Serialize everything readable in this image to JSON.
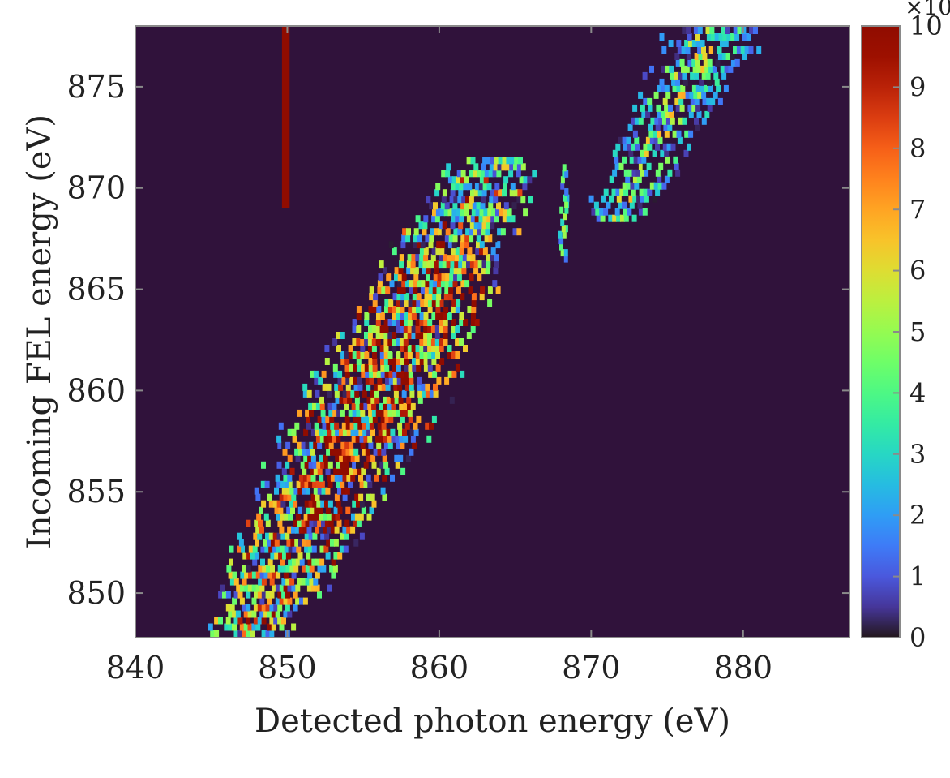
{
  "chart_data": {
    "type": "heatmap",
    "title": "",
    "xlabel": "Detected photon energy (eV)",
    "ylabel": "Incoming FEL energy (eV)",
    "xlim": [
      840,
      887
    ],
    "ylim": [
      847.8,
      878
    ],
    "x_ticks": [
      "840",
      "850",
      "860",
      "870",
      "880"
    ],
    "y_ticks": [
      "850",
      "855",
      "860",
      "865",
      "870",
      "875"
    ],
    "background_color": "#30123b",
    "colorbar": {
      "min": 0,
      "max": 10,
      "ticks": [
        "0",
        "1",
        "2",
        "3",
        "4",
        "5",
        "6",
        "7",
        "8",
        "9",
        "10"
      ],
      "exponent_label": "×10",
      "colormap": "turbo"
    },
    "features": [
      {
        "name": "elastic line",
        "x": 849.9,
        "y_range": [
          869.0,
          878.0
        ],
        "intensity": 10
      },
      {
        "name": "main diagonal band",
        "x_start": 847.5,
        "x_end": 864.0,
        "y_start": 848.0,
        "y_end": 871.5,
        "peak_intensity": 10
      },
      {
        "name": "narrow feature",
        "x": 868.2,
        "y_range": [
          866.5,
          871.0
        ],
        "intensity": 5
      },
      {
        "name": "upper right band",
        "x_start": 872.0,
        "x_end": 878.0,
        "y_start": 868.5,
        "y_end": 878.0,
        "peak_intensity": 7
      }
    ]
  }
}
